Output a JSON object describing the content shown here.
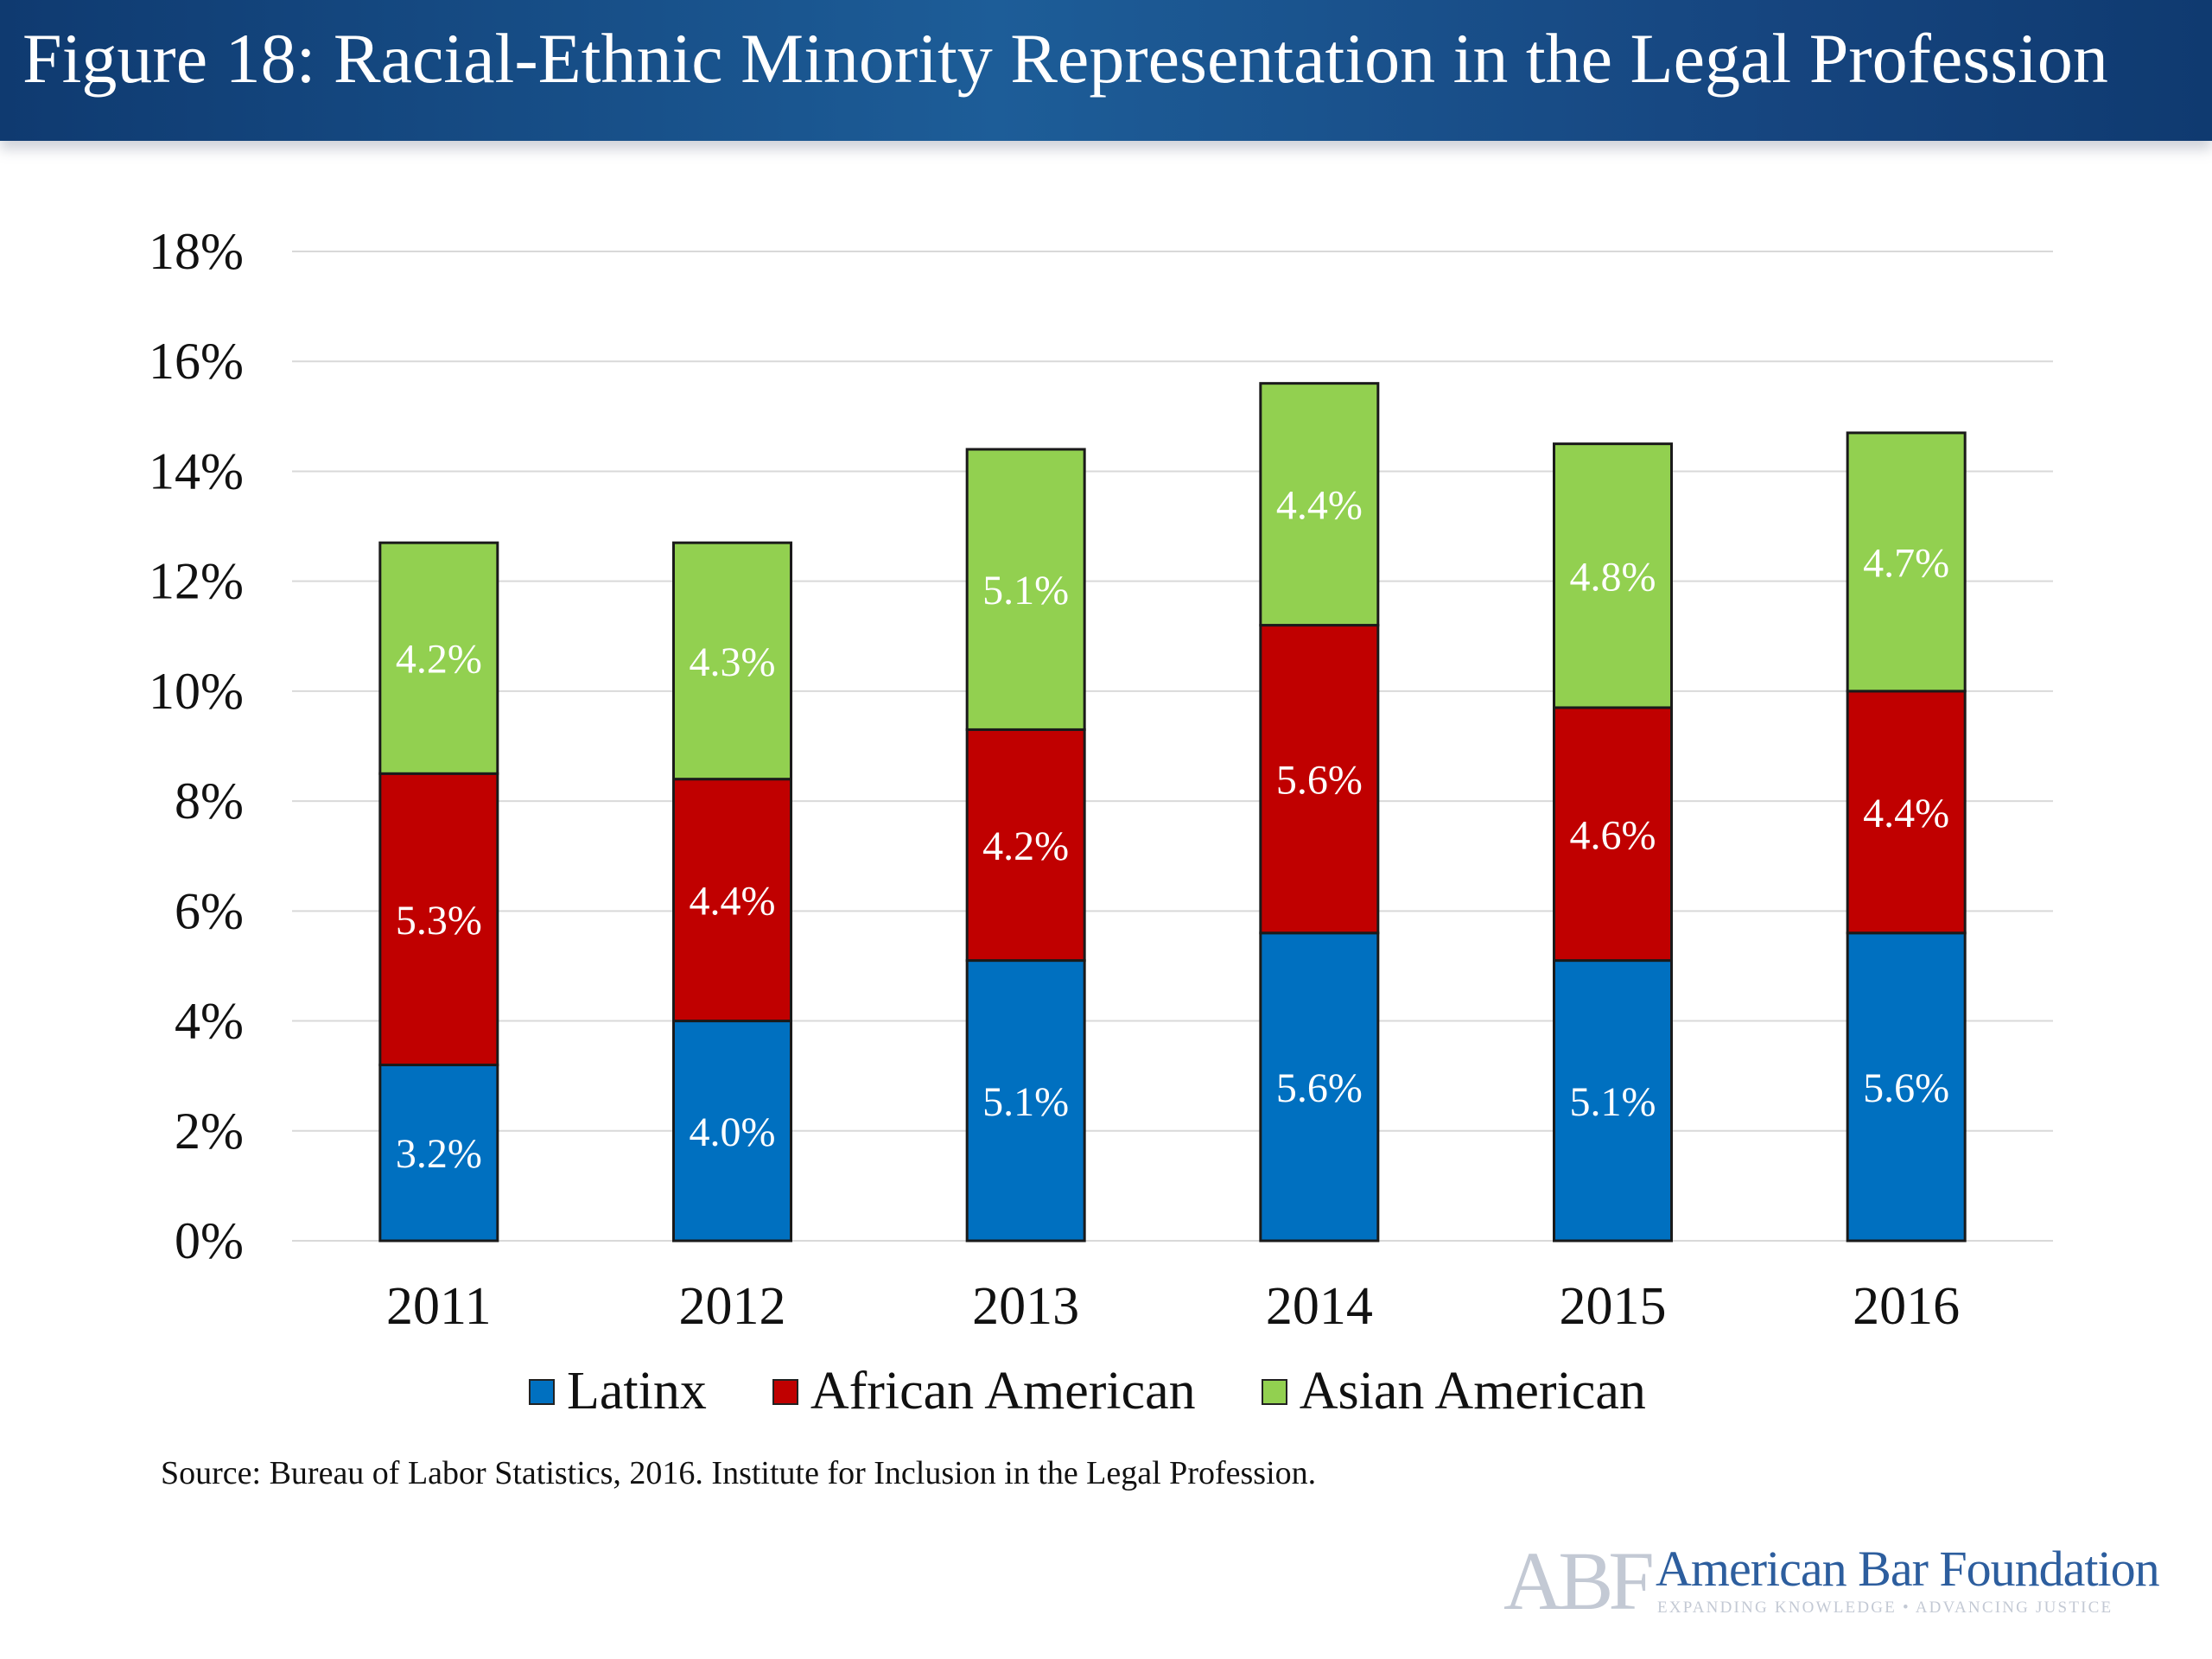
{
  "header": {
    "title": "Figure 18: Racial-Ethnic Minority Representation in the Legal Profession"
  },
  "chart_data": {
    "type": "bar",
    "stacked": true,
    "title": "Figure 18: Racial-Ethnic Minority Representation in the Legal Profession",
    "xlabel": "",
    "ylabel": "",
    "categories": [
      "2011",
      "2012",
      "2013",
      "2014",
      "2015",
      "2016"
    ],
    "series": [
      {
        "name": "Latinx",
        "values": [
          3.2,
          4.0,
          5.1,
          5.6,
          5.1,
          5.6
        ],
        "labels": [
          "3.2%",
          "4.0%",
          "5.1%",
          "5.6%",
          "5.1%",
          "5.6%"
        ],
        "color": "#0070c0"
      },
      {
        "name": "African American",
        "values": [
          5.3,
          4.4,
          4.2,
          5.6,
          4.6,
          4.4
        ],
        "labels": [
          "5.3%",
          "4.4%",
          "4.2%",
          "5.6%",
          "4.6%",
          "4.4%"
        ],
        "color": "#c00000"
      },
      {
        "name": "Asian American",
        "values": [
          4.2,
          4.3,
          5.1,
          4.4,
          4.8,
          4.7
        ],
        "labels": [
          "4.2%",
          "4.3%",
          "5.1%",
          "4.4%",
          "4.8%",
          "4.7%"
        ],
        "color": "#92d050"
      }
    ],
    "ylim": [
      0,
      18
    ],
    "yticks": [
      0,
      2,
      4,
      6,
      8,
      10,
      12,
      14,
      16,
      18
    ],
    "ytick_labels": [
      "0%",
      "2%",
      "4%",
      "6%",
      "8%",
      "10%",
      "12%",
      "14%",
      "16%",
      "18%"
    ],
    "grid": true,
    "legend_position": "bottom"
  },
  "footer": {
    "source": "Source: Bureau of Labor Statistics, 2016. Institute for Inclusion in the Legal Profession."
  },
  "logo": {
    "mark": "ABF",
    "name": "American Bar Foundation",
    "tagline": "EXPANDING KNOWLEDGE • ADVANCING JUSTICE"
  }
}
